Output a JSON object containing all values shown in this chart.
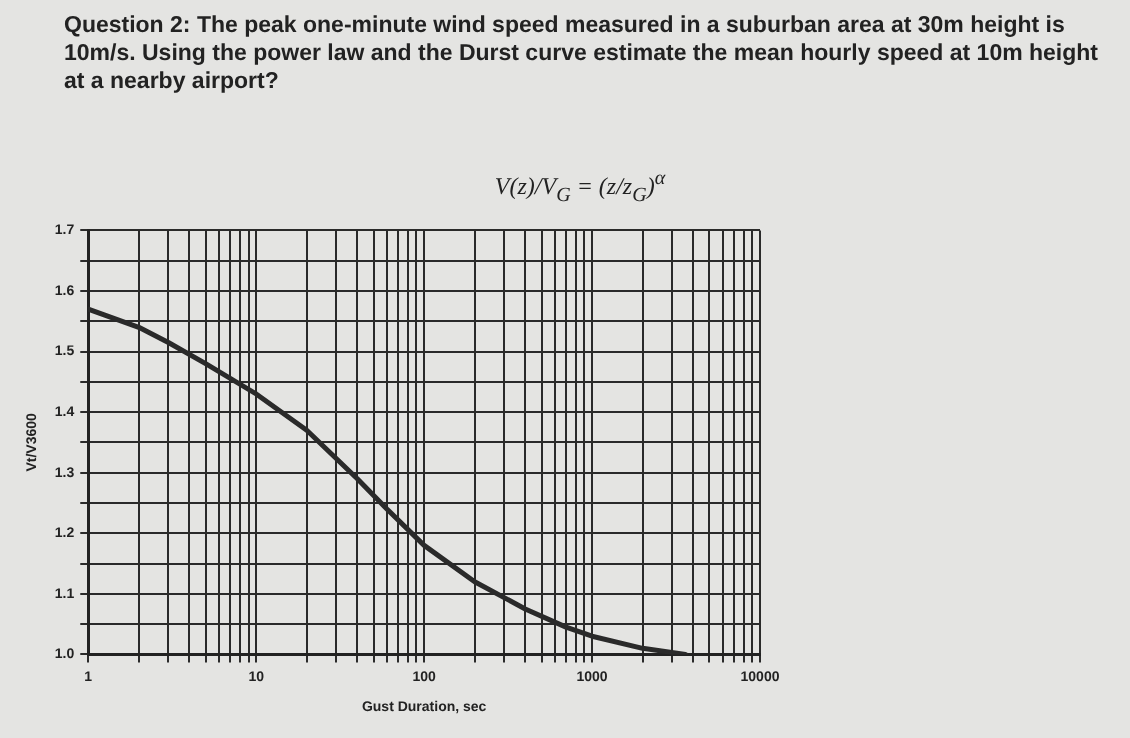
{
  "chart_data": {
    "type": "line",
    "title": "Question 2: The peak one-minute wind speed measured in a suburban area at 30m height is 10m/s. Using the power law and the Durst curve estimate the mean hourly speed at 10m height at a nearby airport?",
    "annotations": [
      "V(z)/V$_{G}$ = (z/z$_{G}$)$^{α}$"
    ],
    "xlabel": "Gust Duration, sec",
    "ylabel": "Vt/V3600",
    "x": [
      1,
      2,
      3,
      5,
      10,
      20,
      40,
      60,
      100,
      200,
      400,
      700,
      1000,
      2000,
      3600
    ],
    "series": [
      {
        "color": "#2a2a2a",
        "values": [
          1.57,
          1.54,
          1.515,
          1.48,
          1.43,
          1.37,
          1.29,
          1.24,
          1.18,
          1.12,
          1.075,
          1.045,
          1.03,
          1.01,
          1.0
        ]
      }
    ],
    "log": "x",
    "xlim": [
      1,
      10000
    ],
    "xticks": [
      1,
      {
        "value": 2,
        "label": null
      },
      {
        "value": 3,
        "label": null
      },
      {
        "value": 4,
        "label": null
      },
      {
        "value": 5,
        "label": null
      },
      {
        "value": 6,
        "label": null
      },
      {
        "value": 7,
        "label": null
      },
      {
        "value": 8,
        "label": null
      },
      {
        "value": 9,
        "label": null
      },
      10,
      {
        "value": 20,
        "label": null
      },
      {
        "value": 30,
        "label": null
      },
      {
        "value": 40,
        "label": null
      },
      {
        "value": 50,
        "label": null
      },
      {
        "value": 60,
        "label": null
      },
      {
        "value": 70,
        "label": null
      },
      {
        "value": 80,
        "label": null
      },
      {
        "value": 90,
        "label": null
      },
      100,
      {
        "value": 200,
        "label": null
      },
      {
        "value": 300,
        "label": null
      },
      {
        "value": 400,
        "label": null
      },
      {
        "value": 500,
        "label": null
      },
      {
        "value": 600,
        "label": null
      },
      {
        "value": 700,
        "label": null
      },
      {
        "value": 800,
        "label": null
      },
      {
        "value": 900,
        "label": null
      },
      1000,
      {
        "value": 2000,
        "label": null
      },
      {
        "value": 3000,
        "label": null
      },
      {
        "value": 4000,
        "label": null
      },
      {
        "value": 5000,
        "label": null
      },
      {
        "value": 6000,
        "label": null
      },
      {
        "value": 7000,
        "label": null
      },
      {
        "value": 8000,
        "label": null
      },
      {
        "value": 9000,
        "label": null
      },
      10000
    ],
    "ylim": [
      1.0,
      1.7
    ],
    "yticks": [
      {
        "value": 1.0,
        "label": "1.0"
      },
      {
        "value": 1.05,
        "label": null
      },
      1.1,
      {
        "value": 1.15,
        "label": null
      },
      1.2,
      {
        "value": 1.25,
        "label": null
      },
      1.3,
      {
        "value": 1.35,
        "label": null
      },
      1.4,
      {
        "value": 1.45,
        "label": null
      },
      1.5,
      {
        "value": 1.55,
        "label": null
      },
      1.6,
      {
        "value": 1.65,
        "label": null
      },
      1.7
    ],
    "grid": true,
    "marker": "none",
    "line_style": "solid",
    "legend": false
  }
}
